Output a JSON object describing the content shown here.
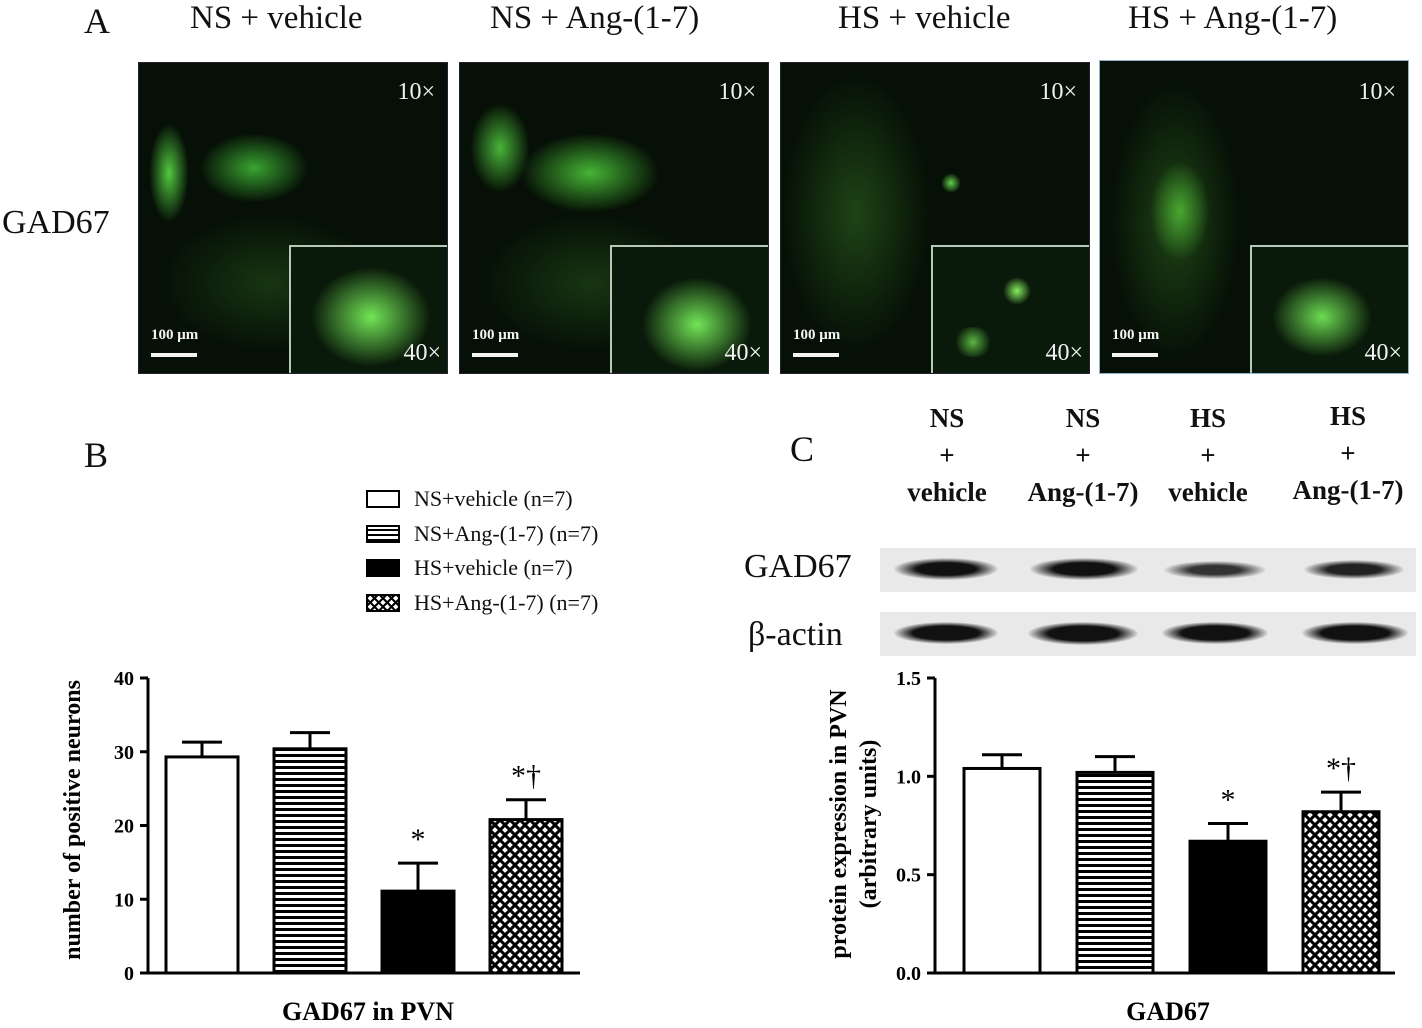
{
  "panel_a": {
    "letter": "A",
    "row_label": "GAD67",
    "columns": [
      {
        "title": "NS + vehicle",
        "mag_low": "10×",
        "mag_high": "40×",
        "scale": "100 μm"
      },
      {
        "title": "NS + Ang-(1-7)",
        "mag_low": "10×",
        "mag_high": "40×",
        "scale": "100 μm"
      },
      {
        "title": "HS + vehicle",
        "mag_low": "10×",
        "mag_high": "40×",
        "scale": "100 μm"
      },
      {
        "title": "HS + Ang-(1-7)",
        "mag_low": "10×",
        "mag_high": "40×",
        "scale": "100 μm"
      }
    ]
  },
  "panel_b": {
    "letter": "B",
    "legend": [
      {
        "label": "NS+vehicle (n=7)",
        "pattern": "open"
      },
      {
        "label": "NS+Ang-(1-7) (n=7)",
        "pattern": "horizontal"
      },
      {
        "label": "HS+vehicle (n=7)",
        "pattern": "solid"
      },
      {
        "label": "HS+Ang-(1-7) (n=7)",
        "pattern": "crosshatch"
      }
    ]
  },
  "panel_c": {
    "letter": "C",
    "lanes": [
      {
        "line1": "NS",
        "line2": "+",
        "line3": "vehicle"
      },
      {
        "line1": "NS",
        "line2": "+",
        "line3": "Ang-(1-7)"
      },
      {
        "line1": "HS",
        "line2": "+",
        "line3": "vehicle"
      },
      {
        "line1": "HS",
        "line2": "+",
        "line3": "Ang-(1-7)"
      }
    ],
    "blot_rows": [
      "GAD67",
      "β-actin"
    ]
  },
  "chart_data": [
    {
      "type": "bar",
      "categories": [
        "NS+vehicle (n=7)",
        "NS+Ang-(1-7) (n=7)",
        "HS+vehicle (n=7)",
        "HS+Ang-(1-7) (n=7)"
      ],
      "values": [
        29.3,
        30.4,
        11.1,
        20.8
      ],
      "errors": [
        2.0,
        2.2,
        3.8,
        2.7
      ],
      "annotations": [
        "",
        "",
        "*",
        "*†"
      ],
      "xlabel": "GAD67 in PVN",
      "ylabel": "number of positive neurons",
      "ylim": [
        0,
        40
      ],
      "yticks": [
        "0",
        "10",
        "20",
        "30",
        "40"
      ],
      "patterns": [
        "open",
        "horizontal",
        "solid",
        "crosshatch"
      ]
    },
    {
      "type": "bar",
      "categories": [
        "NS+vehicle (n=7)",
        "NS+Ang-(1-7) (n=7)",
        "HS+vehicle (n=7)",
        "HS+Ang-(1-7) (n=7)"
      ],
      "values": [
        1.04,
        1.02,
        0.67,
        0.82
      ],
      "errors": [
        0.07,
        0.08,
        0.09,
        0.1
      ],
      "annotations": [
        "",
        "",
        "*",
        "*†"
      ],
      "xlabel": "GAD67",
      "ylabel": "protein expression in PVN",
      "ylabel2": "(arbitrary units)",
      "ylim": [
        0,
        1.5
      ],
      "yticks": [
        "0.0",
        "0.5",
        "1.0",
        "1.5"
      ],
      "patterns": [
        "open",
        "horizontal",
        "solid",
        "crosshatch"
      ]
    }
  ]
}
